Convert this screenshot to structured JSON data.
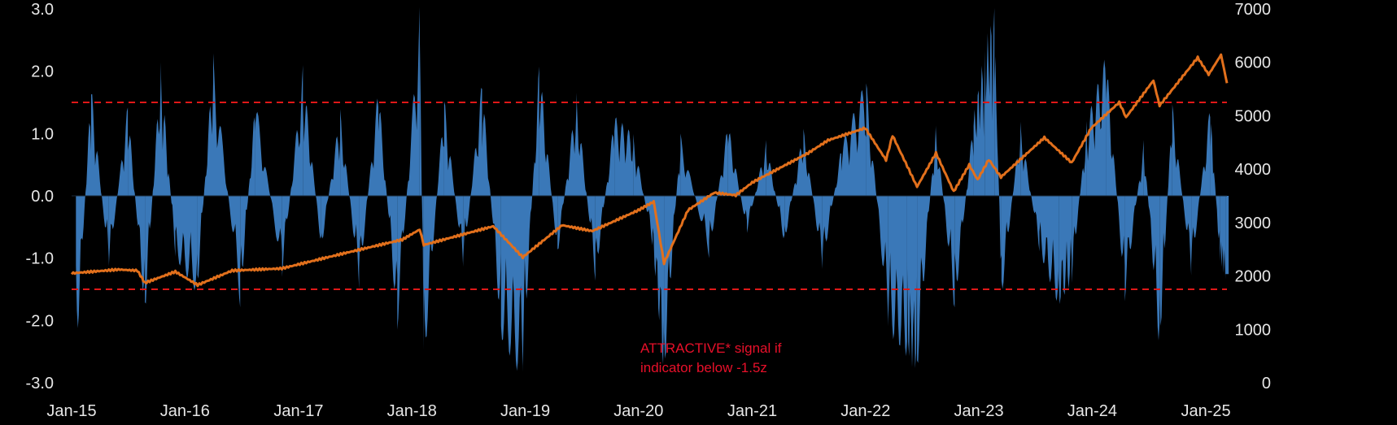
{
  "chart_data": {
    "type": "bar",
    "series": [
      {
        "kind": "bar",
        "axis": "left",
        "color": "#3a78b8",
        "x": [
          "2015-01-15",
          "2015-03-05",
          "2015-05-01",
          "2015-07-01",
          "2015-08-25",
          "2015-10-15",
          "2015-12-01",
          "2016-02-10",
          "2016-04-01",
          "2016-06-27",
          "2016-08-15",
          "2016-11-09",
          "2017-01-15",
          "2017-03-15",
          "2017-05-15",
          "2017-07-15",
          "2017-09-15",
          "2017-11-15",
          "2018-01-26",
          "2018-02-08",
          "2018-04-15",
          "2018-06-15",
          "2018-08-15",
          "2018-10-15",
          "2018-12-24",
          "2019-02-15",
          "2019-04-15",
          "2019-06-15",
          "2019-08-15",
          "2019-10-15",
          "2019-12-15",
          "2020-02-15",
          "2020-03-23",
          "2020-05-15",
          "2020-08-15",
          "2020-10-15",
          "2020-12-15",
          "2021-02-15",
          "2021-04-15",
          "2021-06-15",
          "2021-08-15",
          "2021-10-15",
          "2022-01-03",
          "2022-03-15",
          "2022-05-15",
          "2022-06-16",
          "2022-08-15",
          "2022-10-15",
          "2022-12-15",
          "2023-01-20",
          "2023-02-20",
          "2023-03-15",
          "2023-05-15",
          "2023-07-15",
          "2023-09-15",
          "2023-10-27",
          "2023-12-15",
          "2024-02-15",
          "2024-04-15",
          "2024-06-15",
          "2024-08-05",
          "2024-09-15",
          "2024-11-15",
          "2025-01-15",
          "2025-02-15",
          "2025-03-05"
        ],
        "values": [
          -2.8,
          1.8,
          -1.2,
          1.5,
          -2.0,
          2.2,
          -1.0,
          -1.6,
          2.3,
          -1.8,
          1.6,
          -1.3,
          2.1,
          -0.9,
          1.4,
          -1.5,
          1.8,
          -2.2,
          3.1,
          -2.9,
          1.6,
          -1.2,
          1.9,
          -2.3,
          -3.0,
          2.2,
          -1.0,
          1.7,
          -1.4,
          1.3,
          1.0,
          -0.8,
          -3.0,
          1.0,
          -1.0,
          1.2,
          -0.6,
          0.9,
          -0.8,
          1.1,
          -1.2,
          0.8,
          1.9,
          -2.2,
          -2.6,
          -2.9,
          1.2,
          -1.9,
          1.3,
          2.4,
          3.1,
          -1.7,
          1.2,
          -0.9,
          -1.8,
          -1.4,
          1.2,
          2.3,
          -1.7,
          0.9,
          -2.6,
          1.5,
          -1.3,
          1.5,
          -1.1,
          -1.4
        ]
      },
      {
        "kind": "line",
        "axis": "right",
        "color": "#e2701c",
        "x": [
          "2015-01-01",
          "2015-06-01",
          "2015-08-01",
          "2015-08-25",
          "2015-12-01",
          "2016-02-11",
          "2016-06-01",
          "2016-11-08",
          "2017-06-01",
          "2017-12-01",
          "2018-01-26",
          "2018-02-08",
          "2018-09-20",
          "2018-12-24",
          "2019-04-30",
          "2019-08-05",
          "2019-12-31",
          "2020-02-19",
          "2020-03-23",
          "2020-06-08",
          "2020-09-01",
          "2020-11-09",
          "2021-01-01",
          "2021-06-30",
          "2021-09-02",
          "2021-12-31",
          "2022-03-08",
          "2022-03-29",
          "2022-06-16",
          "2022-08-16",
          "2022-10-12",
          "2022-12-01",
          "2022-12-28",
          "2023-02-02",
          "2023-03-13",
          "2023-07-31",
          "2023-10-27",
          "2023-12-29",
          "2024-03-28",
          "2024-04-19",
          "2024-07-16",
          "2024-08-05",
          "2024-12-06",
          "2025-01-10",
          "2025-02-19",
          "2025-03-10"
        ],
        "values": [
          2050,
          2120,
          2100,
          1870,
          2080,
          1830,
          2100,
          2140,
          2430,
          2680,
          2870,
          2580,
          2930,
          2350,
          2950,
          2840,
          3230,
          3390,
          2240,
          3230,
          3560,
          3510,
          3750,
          4300,
          4540,
          4770,
          4170,
          4630,
          3670,
          4300,
          3580,
          4080,
          3800,
          4180,
          3850,
          4590,
          4120,
          4770,
          5250,
          4970,
          5660,
          5190,
          6090,
          5770,
          6140,
          5610
        ]
      }
    ],
    "left_axis": {
      "ylim": [
        -3.0,
        3.0
      ],
      "ticks": [
        "3.0",
        "2.0",
        "1.0",
        "0.0",
        "-1.0",
        "-2.0",
        "-3.0"
      ],
      "tick_values": [
        3,
        2,
        1,
        0,
        -1,
        -2,
        -3
      ]
    },
    "right_axis": {
      "ylim": [
        0,
        7000
      ],
      "ticks": [
        "7000",
        "6000",
        "5000",
        "4000",
        "3000",
        "2000",
        "1000",
        "0"
      ],
      "tick_values": [
        7000,
        6000,
        5000,
        4000,
        3000,
        2000,
        1000,
        0
      ]
    },
    "x_axis": {
      "range": [
        "2015-01-01",
        "2025-03-10"
      ],
      "ticks": [
        "Jan-15",
        "Jan-16",
        "Jan-17",
        "Jan-18",
        "Jan-19",
        "Jan-20",
        "Jan-21",
        "Jan-22",
        "Jan-23",
        "Jan-24",
        "Jan-25"
      ],
      "tick_dates": [
        "2015-01-01",
        "2016-01-01",
        "2017-01-01",
        "2018-01-01",
        "2019-01-01",
        "2020-01-01",
        "2021-01-01",
        "2022-01-01",
        "2023-01-01",
        "2024-01-01",
        "2025-01-01"
      ]
    },
    "threshold_lines": [
      {
        "value": 1.5,
        "color": "#e01818",
        "style": "dashed"
      },
      {
        "value": -1.5,
        "color": "#e01818",
        "style": "dashed"
      }
    ],
    "annotation": {
      "lines": [
        "ATTRACTIVE* signal if",
        "indicator below -1.5z"
      ],
      "color": "#e8102a"
    },
    "grid": false,
    "legend": "none",
    "background": "#000000"
  }
}
